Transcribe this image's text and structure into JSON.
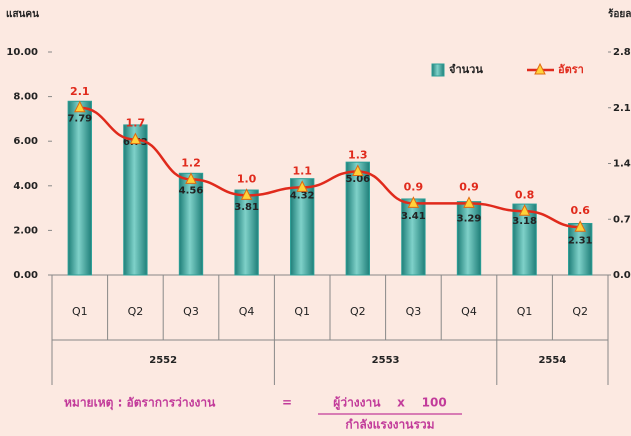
{
  "chart_data": {
    "type": "bar-line",
    "ylabel": "แสนคน",
    "y2label": "ร้อยละ",
    "groups": [
      {
        "name": "2552",
        "categories": [
          "Q1",
          "Q2",
          "Q3",
          "Q4"
        ]
      },
      {
        "name": "2553",
        "categories": [
          "Q1",
          "Q2",
          "Q3",
          "Q4"
        ]
      },
      {
        "name": "2554",
        "categories": [
          "Q1",
          "Q2"
        ]
      }
    ],
    "series": [
      {
        "name": "จำนวน",
        "type": "bar",
        "color": "#2b9e96",
        "values": [
          7.79,
          6.73,
          4.56,
          3.81,
          4.32,
          5.06,
          3.41,
          3.29,
          3.18,
          2.31
        ]
      },
      {
        "name": "อัตรา",
        "type": "line",
        "axis": "y2",
        "color": "#e02a1c",
        "values": [
          2.1,
          1.7,
          1.2,
          1.0,
          1.1,
          1.3,
          0.9,
          0.9,
          0.8,
          0.6
        ],
        "value_labels": [
          "2.1",
          "1.7",
          "1.2",
          "1.0",
          "1.1",
          "1.3",
          "0.9",
          "0.9",
          "0.8",
          "0.6"
        ]
      }
    ],
    "ylim": [
      0,
      10
    ],
    "yticks": [
      {
        "value": 0,
        "label": "0.00"
      },
      {
        "value": 2,
        "label": "2.00"
      },
      {
        "value": 4,
        "label": "4.00"
      },
      {
        "value": 6,
        "label": "6.00"
      },
      {
        "value": 8,
        "label": "8.00"
      },
      {
        "value": 10,
        "label": "10.00"
      }
    ],
    "y2lim": [
      0,
      2.8
    ],
    "y2ticks": [
      {
        "value": 0,
        "label": "0.0"
      },
      0.7,
      1.4,
      2.1,
      2.8
    ],
    "legend": "top-right",
    "note": {
      "label": "หมายเหตุ : อัตราการว่างงาน",
      "equals": "=",
      "numerator": "ผู้ว่างงาน    x    100",
      "denominator": "กำลังแรงงานรวม"
    }
  }
}
